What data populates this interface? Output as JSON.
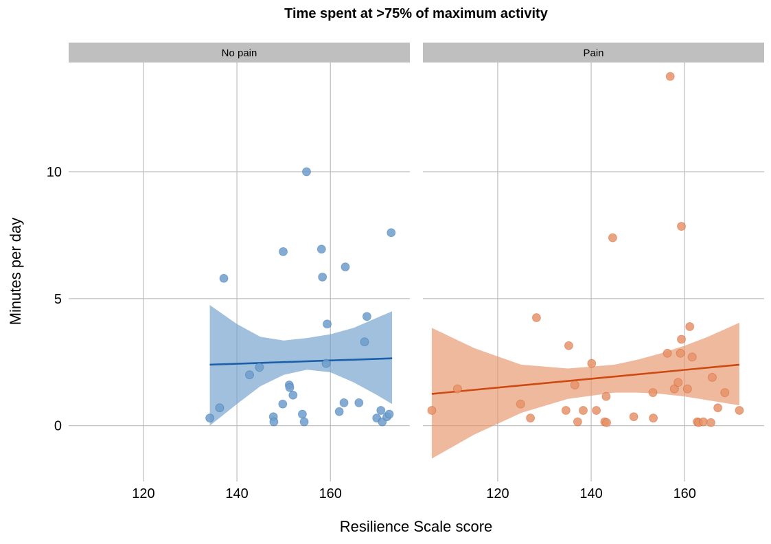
{
  "chart_data": {
    "type": "scatter",
    "title": "Time spent at >75% of maximum activity",
    "xlabel": "Resilience Scale score",
    "ylabel": "Minutes per day",
    "xlim": [
      104,
      177
    ],
    "ylim": [
      -2.2,
      14.3
    ],
    "x_ticks": [
      "120",
      "140",
      "160"
    ],
    "x_tick_values": [
      120,
      140,
      160
    ],
    "y_ticks": [
      "0",
      "5",
      "10"
    ],
    "y_tick_values": [
      0,
      5,
      10
    ],
    "grid": true,
    "legend": "none",
    "facets": [
      {
        "label": "No pain",
        "color": "#1a5fa8",
        "fill_color": "#6f9ecb",
        "points": [
          {
            "x": 134.2,
            "y": 0.3
          },
          {
            "x": 136.3,
            "y": 0.7
          },
          {
            "x": 137.2,
            "y": 5.8
          },
          {
            "x": 142.7,
            "y": 2.0
          },
          {
            "x": 144.8,
            "y": 2.3
          },
          {
            "x": 147.8,
            "y": 0.35
          },
          {
            "x": 147.9,
            "y": 0.15
          },
          {
            "x": 149.8,
            "y": 0.85
          },
          {
            "x": 149.9,
            "y": 6.85
          },
          {
            "x": 151.2,
            "y": 1.6
          },
          {
            "x": 151.3,
            "y": 1.5
          },
          {
            "x": 152.0,
            "y": 1.2
          },
          {
            "x": 154.0,
            "y": 0.45
          },
          {
            "x": 154.4,
            "y": 0.15
          },
          {
            "x": 154.9,
            "y": 10.0
          },
          {
            "x": 158.1,
            "y": 6.95
          },
          {
            "x": 158.3,
            "y": 5.85
          },
          {
            "x": 159.1,
            "y": 2.45
          },
          {
            "x": 159.3,
            "y": 4.0
          },
          {
            "x": 161.9,
            "y": 0.55
          },
          {
            "x": 162.9,
            "y": 0.9
          },
          {
            "x": 163.2,
            "y": 6.25
          },
          {
            "x": 166.1,
            "y": 0.9
          },
          {
            "x": 167.3,
            "y": 3.3
          },
          {
            "x": 167.8,
            "y": 4.3
          },
          {
            "x": 169.9,
            "y": 0.3
          },
          {
            "x": 170.8,
            "y": 0.6
          },
          {
            "x": 171.1,
            "y": 0.15
          },
          {
            "x": 172.1,
            "y": 0.35
          },
          {
            "x": 172.6,
            "y": 0.45
          },
          {
            "x": 173.0,
            "y": 7.6
          }
        ],
        "fit": {
          "x": [
            134.2,
            173.2
          ],
          "y": [
            2.4,
            2.65
          ]
        },
        "band": {
          "x": [
            134.2,
            140,
            145,
            150,
            155,
            160,
            165,
            170,
            173.2
          ],
          "lower": [
            0.0,
            0.85,
            1.55,
            2.0,
            2.2,
            2.1,
            1.7,
            1.2,
            0.85
          ],
          "upper": [
            4.75,
            4.0,
            3.5,
            3.35,
            3.45,
            3.6,
            3.85,
            4.25,
            4.5
          ]
        }
      },
      {
        "label": "Pain",
        "color": "#cc4a12",
        "fill_color": "#e6936a",
        "points": [
          {
            "x": 105.9,
            "y": 0.6
          },
          {
            "x": 111.4,
            "y": 1.45
          },
          {
            "x": 124.9,
            "y": 0.85
          },
          {
            "x": 127.0,
            "y": 0.3
          },
          {
            "x": 128.3,
            "y": 4.25
          },
          {
            "x": 134.6,
            "y": 0.6
          },
          {
            "x": 135.2,
            "y": 3.15
          },
          {
            "x": 136.5,
            "y": 1.6
          },
          {
            "x": 137.1,
            "y": 0.15
          },
          {
            "x": 138.3,
            "y": 0.6
          },
          {
            "x": 140.1,
            "y": 2.45
          },
          {
            "x": 141.1,
            "y": 0.6
          },
          {
            "x": 142.9,
            "y": 0.15
          },
          {
            "x": 143.2,
            "y": 1.15
          },
          {
            "x": 143.3,
            "y": 0.12
          },
          {
            "x": 144.6,
            "y": 7.4
          },
          {
            "x": 149.1,
            "y": 0.35
          },
          {
            "x": 153.2,
            "y": 1.3
          },
          {
            "x": 153.3,
            "y": 0.3
          },
          {
            "x": 156.3,
            "y": 2.85
          },
          {
            "x": 156.9,
            "y": 13.75
          },
          {
            "x": 157.8,
            "y": 1.45
          },
          {
            "x": 158.6,
            "y": 1.7
          },
          {
            "x": 159.1,
            "y": 2.85
          },
          {
            "x": 159.3,
            "y": 7.85
          },
          {
            "x": 159.3,
            "y": 3.4
          },
          {
            "x": 160.6,
            "y": 1.45
          },
          {
            "x": 161.1,
            "y": 3.9
          },
          {
            "x": 161.6,
            "y": 2.7
          },
          {
            "x": 162.7,
            "y": 0.15
          },
          {
            "x": 163.0,
            "y": 0.12
          },
          {
            "x": 164.0,
            "y": 0.15
          },
          {
            "x": 165.6,
            "y": 0.12
          },
          {
            "x": 165.9,
            "y": 1.9
          },
          {
            "x": 167.1,
            "y": 0.7
          },
          {
            "x": 168.6,
            "y": 1.3
          },
          {
            "x": 171.7,
            "y": 0.6
          }
        ],
        "fit": {
          "x": [
            105.9,
            171.7
          ],
          "y": [
            1.25,
            2.4
          ]
        },
        "band": {
          "x": [
            105.9,
            115,
            125,
            135,
            145,
            150,
            155,
            160,
            165,
            171.7
          ],
          "lower": [
            -1.3,
            -0.35,
            0.5,
            1.05,
            1.3,
            1.3,
            1.25,
            1.15,
            1.0,
            0.8
          ],
          "upper": [
            3.85,
            3.05,
            2.4,
            2.25,
            2.4,
            2.6,
            2.85,
            3.15,
            3.5,
            4.05
          ]
        }
      }
    ]
  }
}
